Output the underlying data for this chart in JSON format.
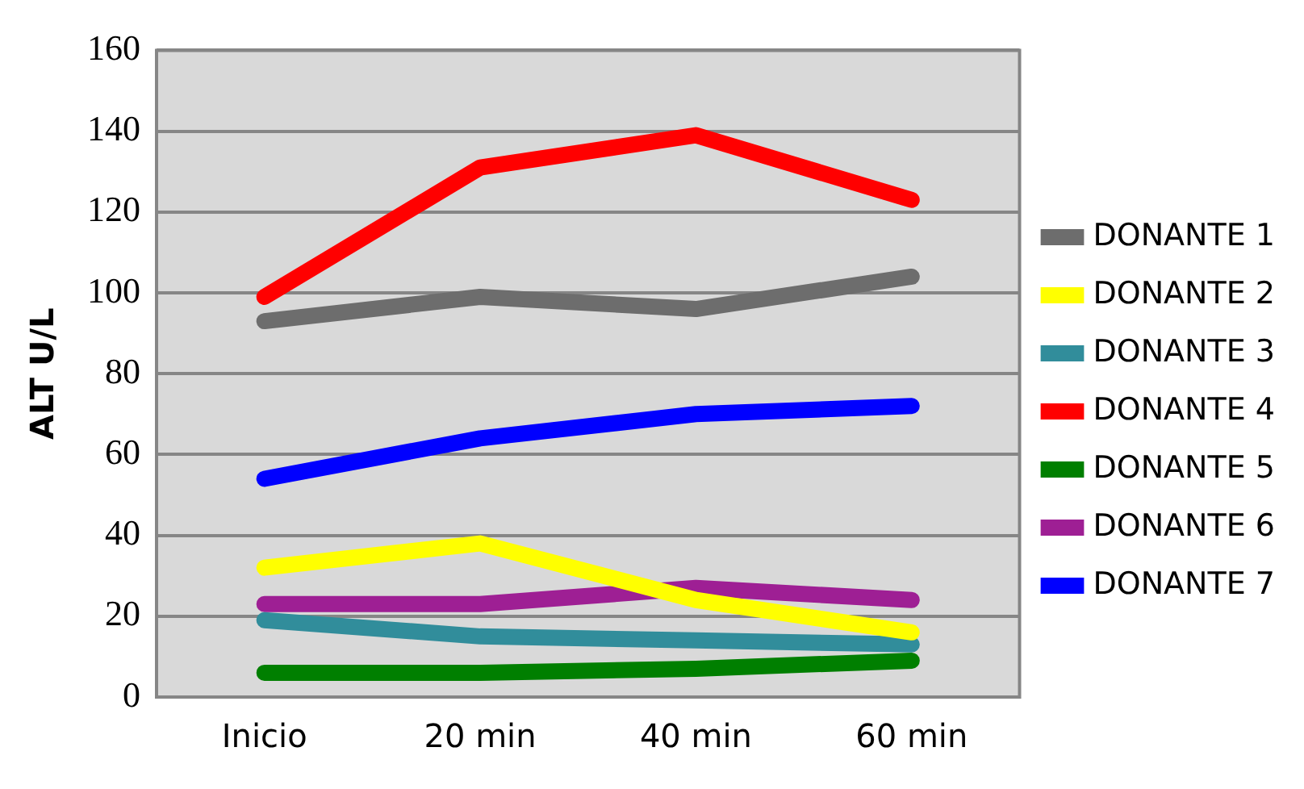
{
  "chart_data": {
    "type": "line",
    "ylabel": "ALT U/L",
    "categories": [
      "Inicio",
      "20 min",
      "40 min",
      "60 min"
    ],
    "ylim": [
      0,
      160
    ],
    "yticks": [
      0,
      20,
      40,
      60,
      80,
      100,
      120,
      140,
      160
    ],
    "grid": "y",
    "legend": "right",
    "marker": "none",
    "line_style": "solid",
    "series": [
      {
        "name": "DONANTE 1",
        "color": "#6d6d6d",
        "values": [
          93,
          99,
          96,
          104
        ]
      },
      {
        "name": "DONANTE 2",
        "color": "#ffff00",
        "values": [
          32,
          38,
          24,
          16
        ]
      },
      {
        "name": "DONANTE 3",
        "color": "#318d9b",
        "values": [
          19,
          15,
          14,
          13
        ]
      },
      {
        "name": "DONANTE 4",
        "color": "#ff0000",
        "values": [
          99,
          131,
          139,
          123
        ]
      },
      {
        "name": "DONANTE 5",
        "color": "#007f00",
        "values": [
          6,
          6,
          7,
          9
        ]
      },
      {
        "name": "DONANTE 6",
        "color": "#9e1f94",
        "values": [
          23,
          23,
          27,
          24
        ]
      },
      {
        "name": "DONANTE 7",
        "color": "#0000ff",
        "values": [
          54,
          64,
          70,
          72
        ]
      }
    ]
  }
}
